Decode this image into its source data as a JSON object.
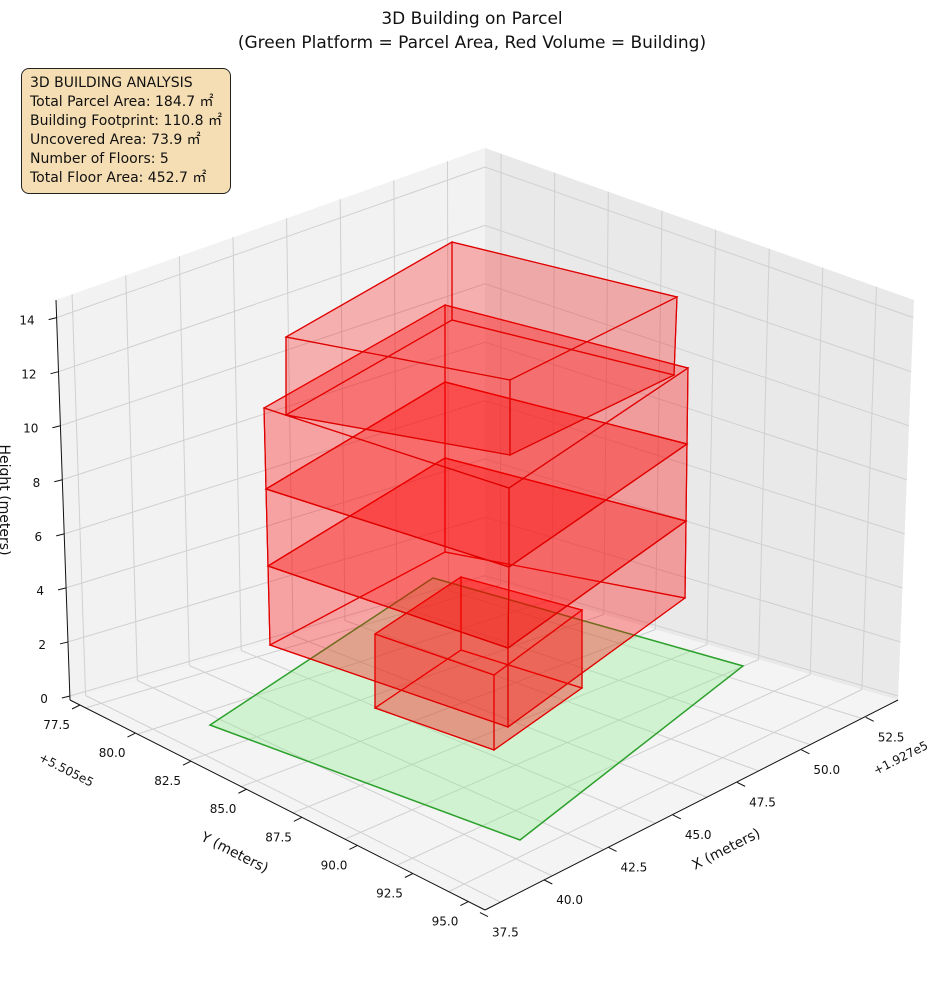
{
  "chart_data": {
    "type": "3d-bar",
    "title": "3D Building on Parcel",
    "subtitle": "(Green Platform = Parcel Area, Red Volume = Building)",
    "xlabel": "X (meters)",
    "ylabel": "Y (meters)",
    "zlabel": "Height (meters)",
    "x_offset": "+1.927e5",
    "y_offset": "+5.505e5",
    "x_ticks": [
      "37.5",
      "40.0",
      "42.5",
      "45.0",
      "47.5",
      "50.0",
      "52.5"
    ],
    "y_ticks": [
      "77.5",
      "80.0",
      "82.5",
      "85.0",
      "87.5",
      "90.0",
      "92.5",
      "95.0"
    ],
    "z_ticks": [
      "0",
      "2",
      "4",
      "6",
      "8",
      "10",
      "12",
      "14"
    ],
    "info": {
      "heading": "3D BUILDING ANALYSIS",
      "lines": [
        "Total Parcel Area: 184.7 ㎡",
        "Building Footprint: 110.8 ㎡",
        "Uncovered Area: 73.9 ㎡",
        "Number of Floors: 5",
        "Total Floor Area: 452.7 ㎡"
      ]
    },
    "parcel_area": 184.7,
    "building_footprint": 110.8,
    "uncovered_area": 73.9,
    "floors": 5,
    "total_floor_area": 452.7,
    "colors": {
      "parcel": "#2ca02c",
      "parcel_fill": "#90ee90",
      "building": "#ff0000"
    }
  }
}
